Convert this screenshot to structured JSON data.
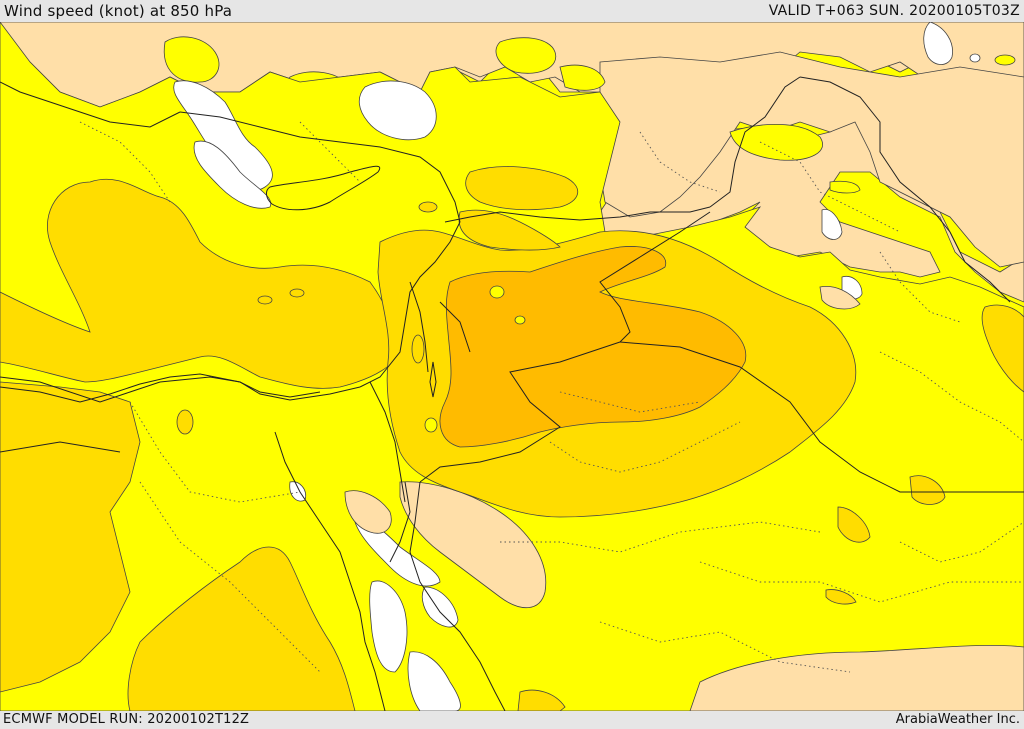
{
  "header": {
    "title": "Wind speed (knot) at 850 hPa",
    "valid_time": "VALID T+063 SUN. 20200105T03Z"
  },
  "footer": {
    "model_run": "ECMWF MODEL RUN: 20200102T12Z",
    "credit": "ArabiaWeather Inc."
  },
  "map": {
    "colors": {
      "peach": "#ffdfa8",
      "yellow": "#ffff00",
      "gold": "#ffdd00",
      "amber": "#ffbb00",
      "white": "#ffffff",
      "boundary": "#222222"
    }
  }
}
